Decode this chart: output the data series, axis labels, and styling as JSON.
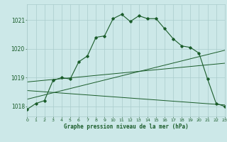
{
  "title": "Graphe pression niveau de la mer (hPa)",
  "bg_color": "#cce8e8",
  "grid_color": "#aacccc",
  "line_color": "#1a5c2a",
  "xlim": [
    0,
    23
  ],
  "ylim": [
    1017.65,
    1021.55
  ],
  "yticks": [
    1018,
    1019,
    1020,
    1021
  ],
  "xticks": [
    0,
    1,
    2,
    3,
    4,
    5,
    6,
    7,
    8,
    9,
    10,
    11,
    12,
    13,
    14,
    15,
    16,
    17,
    18,
    19,
    20,
    21,
    22,
    23
  ],
  "series1_x": [
    0,
    1,
    2,
    3,
    4,
    5,
    6,
    7,
    8,
    9,
    10,
    11,
    12,
    13,
    14,
    15,
    16,
    17,
    18,
    19,
    20,
    21,
    22,
    23
  ],
  "series1_y": [
    1017.9,
    1018.1,
    1018.2,
    1018.9,
    1019.0,
    1018.95,
    1019.55,
    1019.75,
    1020.4,
    1020.45,
    1021.05,
    1021.2,
    1020.95,
    1021.15,
    1021.05,
    1021.05,
    1020.7,
    1020.35,
    1020.1,
    1020.05,
    1019.85,
    1018.95,
    1018.1,
    1018.0
  ],
  "trend1_x": [
    0,
    23
  ],
  "trend1_y": [
    1018.85,
    1019.5
  ],
  "trend2_x": [
    0,
    23
  ],
  "trend2_y": [
    1018.55,
    1018.05
  ],
  "trend3_x": [
    0,
    23
  ],
  "trend3_y": [
    1018.25,
    1019.95
  ]
}
